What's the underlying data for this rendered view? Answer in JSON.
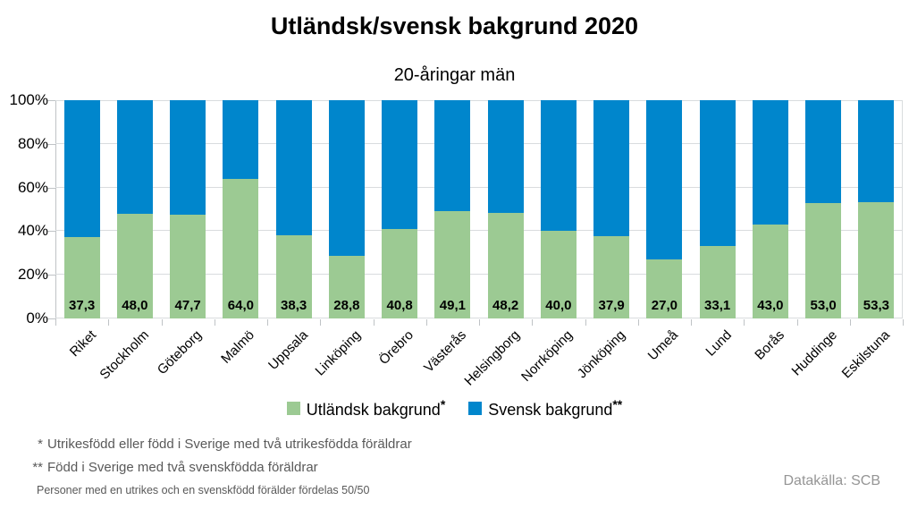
{
  "title": "Utländsk/svensk bakgrund 2020",
  "subtitle": "20-åringar män",
  "chart_data": {
    "type": "bar",
    "stacked": true,
    "orientation": "vertical",
    "title": "Utländsk/svensk bakgrund 2020",
    "subtitle": "20-åringar män",
    "categories": [
      "Riket",
      "Stockholm",
      "Göteborg",
      "Malmö",
      "Uppsala",
      "Linköping",
      "Örebro",
      "Västerås",
      "Helsingborg",
      "Norrköping",
      "Jönköping",
      "Umeå",
      "Lund",
      "Borås",
      "Huddinge",
      "Eskilstuna"
    ],
    "series": [
      {
        "name": "Utländsk bakgrund",
        "legend_suffix": "*",
        "color": "#9cca93",
        "values": [
          37.3,
          48.0,
          47.7,
          64.0,
          38.3,
          28.8,
          40.8,
          49.1,
          48.2,
          40.0,
          37.9,
          27.0,
          33.1,
          43.0,
          53.0,
          53.3
        ],
        "value_labels": [
          "37,3",
          "48,0",
          "47,7",
          "64,0",
          "38,3",
          "28,8",
          "40,8",
          "49,1",
          "48,2",
          "40,0",
          "37,9",
          "27,0",
          "33,1",
          "43,0",
          "53,0",
          "53,3"
        ]
      },
      {
        "name": "Svensk bakgrund",
        "legend_suffix": "**",
        "color": "#0086cc",
        "remainder_to_100": true
      }
    ],
    "y_axis": {
      "min": 0,
      "max": 100,
      "tick_step": 20,
      "tick_labels": [
        "0%",
        "20%",
        "40%",
        "60%",
        "80%",
        "100%"
      ]
    },
    "grid": "horizontal",
    "legend_position": "bottom"
  },
  "footnotes": [
    {
      "marker": "*",
      "text": "Utrikesfödd eller född i Sverige med två utrikesfödda föräldrar"
    },
    {
      "marker": "**",
      "text": "Född i Sverige med två svenskfödda föräldrar"
    }
  ],
  "footnote_note": "Personer med en utrikes och en svenskfödd förälder fördelas 50/50",
  "datasource": "Datakälla: SCB"
}
